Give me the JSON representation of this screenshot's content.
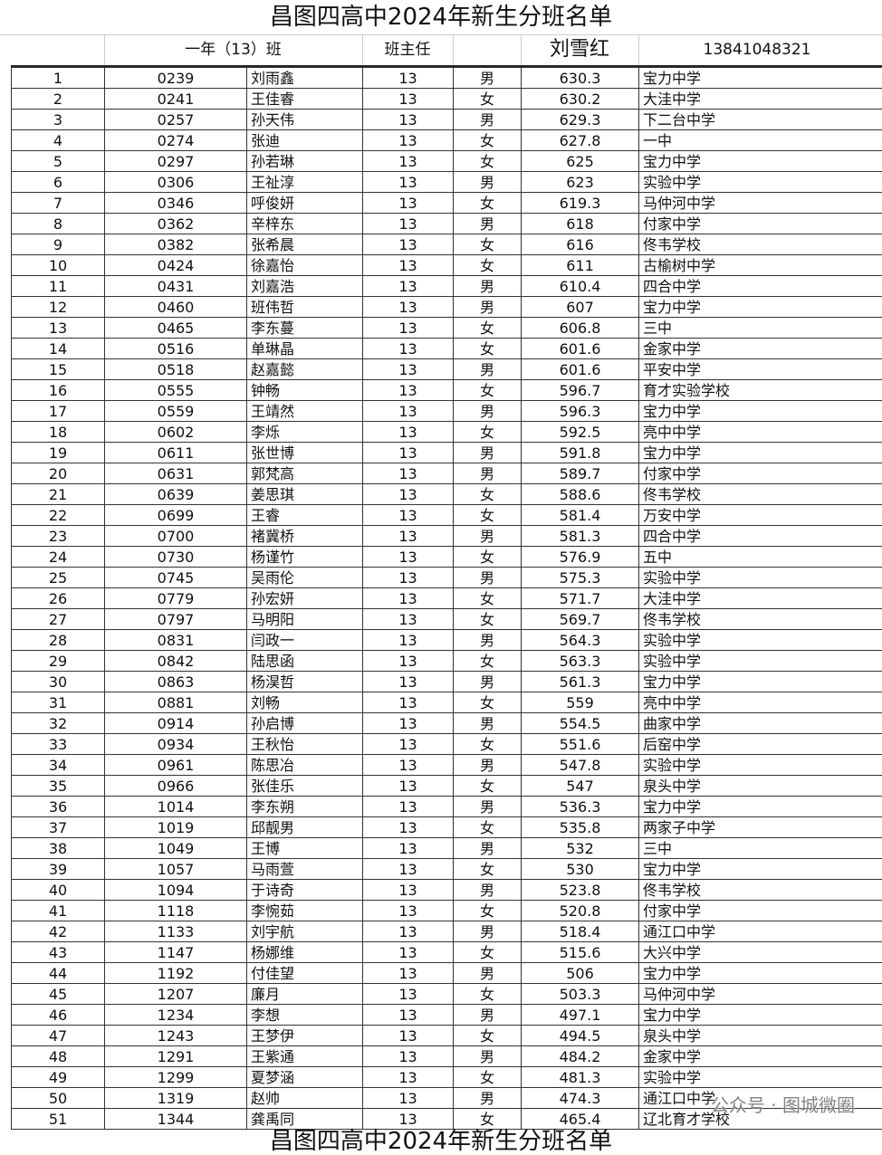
{
  "header": {
    "title": "昌图四高中2024年新生分班名单",
    "class_label": "一年（13）班",
    "teacher_label": "班主任",
    "teacher": "刘雪红",
    "phone": "13841048321"
  },
  "table": {
    "rows": [
      [
        1,
        "0239",
        "刘雨鑫",
        13,
        "男",
        630.3,
        "宝力中学"
      ],
      [
        2,
        "0241",
        "王佳睿",
        13,
        "女",
        630.2,
        "大洼中学"
      ],
      [
        3,
        "0257",
        "孙天伟",
        13,
        "男",
        629.3,
        "下二台中学"
      ],
      [
        4,
        "0274",
        "张迪",
        13,
        "女",
        627.8,
        "一中"
      ],
      [
        5,
        "0297",
        "孙若琳",
        13,
        "女",
        625,
        "宝力中学"
      ],
      [
        6,
        "0306",
        "王祉淳",
        13,
        "男",
        623,
        "实验中学"
      ],
      [
        7,
        "0346",
        "呼俊妍",
        13,
        "女",
        619.3,
        "马仲河中学"
      ],
      [
        8,
        "0362",
        "辛梓东",
        13,
        "男",
        618,
        "付家中学"
      ],
      [
        9,
        "0382",
        "张希晨",
        13,
        "女",
        616,
        "佟韦学校"
      ],
      [
        10,
        "0424",
        "徐嘉怡",
        13,
        "女",
        611,
        "古榆树中学"
      ],
      [
        11,
        "0431",
        "刘嘉浩",
        13,
        "男",
        610.4,
        "四合中学"
      ],
      [
        12,
        "0460",
        "班伟哲",
        13,
        "男",
        607,
        "宝力中学"
      ],
      [
        13,
        "0465",
        "李东蔓",
        13,
        "女",
        606.8,
        "三中"
      ],
      [
        14,
        "0516",
        "单琳晶",
        13,
        "女",
        601.6,
        "金家中学"
      ],
      [
        15,
        "0518",
        "赵嘉懿",
        13,
        "男",
        601.6,
        "平安中学"
      ],
      [
        16,
        "0555",
        "钟畅",
        13,
        "女",
        596.7,
        "育才实验学校"
      ],
      [
        17,
        "0559",
        "王靖然",
        13,
        "男",
        596.3,
        "宝力中学"
      ],
      [
        18,
        "0602",
        "李烁",
        13,
        "女",
        592.5,
        "亮中中学"
      ],
      [
        19,
        "0611",
        "张世博",
        13,
        "男",
        591.8,
        "宝力中学"
      ],
      [
        20,
        "0631",
        "郭梵高",
        13,
        "男",
        589.7,
        "付家中学"
      ],
      [
        21,
        "0639",
        "姜思琪",
        13,
        "女",
        588.6,
        "佟韦学校"
      ],
      [
        22,
        "0699",
        "王睿",
        13,
        "女",
        581.4,
        "万安中学"
      ],
      [
        23,
        "0700",
        "褚冀桥",
        13,
        "男",
        581.3,
        "四合中学"
      ],
      [
        24,
        "0730",
        "杨谨竹",
        13,
        "女",
        576.9,
        "五中"
      ],
      [
        25,
        "0745",
        "吴雨伦",
        13,
        "男",
        575.3,
        "实验中学"
      ],
      [
        26,
        "0779",
        "孙宏妍",
        13,
        "女",
        571.7,
        "大洼中学"
      ],
      [
        27,
        "0797",
        "马明阳",
        13,
        "女",
        569.7,
        "佟韦学校"
      ],
      [
        28,
        "0831",
        "闫政一",
        13,
        "男",
        564.3,
        "实验中学"
      ],
      [
        29,
        "0842",
        "陆思函",
        13,
        "女",
        563.3,
        "实验中学"
      ],
      [
        30,
        "0863",
        "杨淏哲",
        13,
        "男",
        561.3,
        "宝力中学"
      ],
      [
        31,
        "0881",
        "刘畅",
        13,
        "女",
        559,
        "亮中中学"
      ],
      [
        32,
        "0914",
        "孙启博",
        13,
        "男",
        554.5,
        "曲家中学"
      ],
      [
        33,
        "0934",
        "王秋怡",
        13,
        "女",
        551.6,
        "后窑中学"
      ],
      [
        34,
        "0961",
        "陈思冶",
        13,
        "男",
        547.8,
        "实验中学"
      ],
      [
        35,
        "0966",
        "张佳乐",
        13,
        "女",
        547,
        "泉头中学"
      ],
      [
        36,
        "1014",
        "李东朔",
        13,
        "男",
        536.3,
        "宝力中学"
      ],
      [
        37,
        "1019",
        "邱靓男",
        13,
        "女",
        535.8,
        "两家子中学"
      ],
      [
        38,
        "1049",
        "王博",
        13,
        "男",
        532,
        "三中"
      ],
      [
        39,
        "1057",
        "马雨萱",
        13,
        "女",
        530,
        "宝力中学"
      ],
      [
        40,
        "1094",
        "于诗奇",
        13,
        "男",
        523.8,
        "佟韦学校"
      ],
      [
        41,
        "1118",
        "李惋茹",
        13,
        "女",
        520.8,
        "付家中学"
      ],
      [
        42,
        "1133",
        "刘宇航",
        13,
        "男",
        518.4,
        "通江口中学"
      ],
      [
        43,
        "1147",
        "杨娜维",
        13,
        "女",
        515.6,
        "大兴中学"
      ],
      [
        44,
        "1192",
        "付佳望",
        13,
        "男",
        506,
        "宝力中学"
      ],
      [
        45,
        "1207",
        "廉月",
        13,
        "女",
        503.3,
        "马仲河中学"
      ],
      [
        46,
        "1234",
        "李想",
        13,
        "男",
        497.1,
        "宝力中学"
      ],
      [
        47,
        "1243",
        "王梦伊",
        13,
        "女",
        494.5,
        "泉头中学"
      ],
      [
        48,
        "1291",
        "王紫通",
        13,
        "男",
        484.2,
        "金家中学"
      ],
      [
        49,
        "1299",
        "夏梦涵",
        13,
        "女",
        481.3,
        "实验中学"
      ],
      [
        50,
        "1319",
        "赵帅",
        13,
        "男",
        474.3,
        "通江口中学"
      ],
      [
        51,
        "1344",
        "龚禹同",
        13,
        "女",
        465.4,
        "辽北育才学校"
      ]
    ]
  },
  "watermark": "公众号 · 图城微圈",
  "footer": {
    "title": "昌图四高中2024年新生分班名单"
  }
}
